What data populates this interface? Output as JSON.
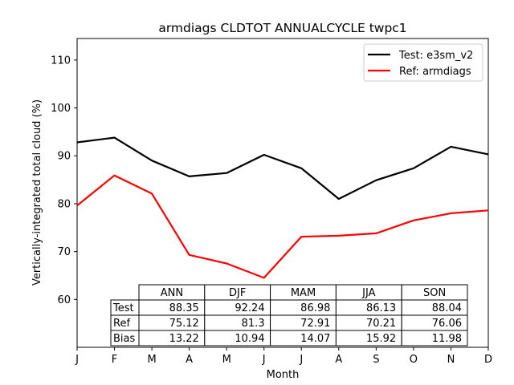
{
  "chart_data": {
    "type": "line",
    "title": "armdiags CLDTOT ANNUALCYCLE twpc1",
    "xlabel": "Month",
    "ylabel": "Vertically-integrated total cloud (%)",
    "categories": [
      "J",
      "F",
      "M",
      "A",
      "M",
      "J",
      "J",
      "A",
      "S",
      "O",
      "N",
      "D"
    ],
    "ylim": [
      50,
      114.5
    ],
    "yticks": [
      60,
      70,
      80,
      90,
      100,
      110
    ],
    "grid": false,
    "legend_position": "top-right",
    "series": [
      {
        "name": "Test: e3sm_v2",
        "color": "#000000",
        "values": [
          92.8,
          93.8,
          89.0,
          85.7,
          86.4,
          90.2,
          87.4,
          81.0,
          84.9,
          87.4,
          91.9,
          90.3
        ]
      },
      {
        "name": "Ref: armdiags",
        "color": "#ff0000",
        "values": [
          79.6,
          85.9,
          82.1,
          69.3,
          67.5,
          64.5,
          73.1,
          73.3,
          73.8,
          76.5,
          78.0,
          78.6
        ]
      }
    ],
    "table": {
      "columns": [
        "ANN",
        "DJF",
        "MAM",
        "JJA",
        "SON"
      ],
      "rows": [
        {
          "label": "Test",
          "values": [
            "88.35",
            "92.24",
            "86.98",
            "86.13",
            "88.04"
          ]
        },
        {
          "label": "Ref",
          "values": [
            "75.12",
            "81.3",
            "72.91",
            "70.21",
            "76.06"
          ]
        },
        {
          "label": "Bias",
          "values": [
            "13.22",
            "10.94",
            "14.07",
            "15.92",
            "11.98"
          ]
        }
      ]
    }
  }
}
